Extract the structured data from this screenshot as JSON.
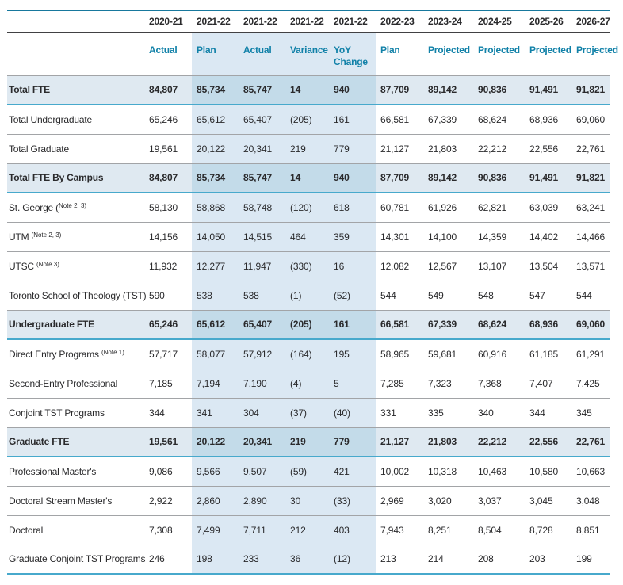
{
  "colors": {
    "accent_teal_header_text": "#1181a8",
    "table_top_rule": "#17789d",
    "highlight_row_bg": "#dfe9f1",
    "band_bg": "#dbe8f3",
    "band_on_highlight_bg": "#c3dbe9",
    "highlight_bottom_rule": "#47a9cc",
    "row_divider": "#a2a4a7",
    "year_divider": "#414143",
    "body_text": "#2a2a2c"
  },
  "table": {
    "columns": [
      {
        "year": "2020-21",
        "sub": "Actual",
        "band": false
      },
      {
        "year": "2021-22",
        "sub": "Plan",
        "band": true
      },
      {
        "year": "2021-22",
        "sub": "Actual",
        "band": true
      },
      {
        "year": "2021-22",
        "sub": "Variance",
        "band": true
      },
      {
        "year": "2021-22",
        "sub": "YoY\nChange",
        "band": true
      },
      {
        "year": "2022-23",
        "sub": "Plan",
        "band": false
      },
      {
        "year": "2023-24",
        "sub": "Projected",
        "band": false
      },
      {
        "year": "2024-25",
        "sub": "Projected",
        "band": false
      },
      {
        "year": "2025-26",
        "sub": "Projected",
        "band": false
      },
      {
        "year": "2026-27",
        "sub": "Projected",
        "band": false
      }
    ],
    "rows": [
      {
        "label": "Total FTE",
        "bold": true,
        "values": [
          "84,807",
          "85,734",
          "85,747",
          "14",
          "940",
          "87,709",
          "89,142",
          "90,836",
          "91,491",
          "91,821"
        ]
      },
      {
        "label": "Total Undergraduate",
        "bold": false,
        "values": [
          "65,246",
          "65,612",
          "65,407",
          "(205)",
          "161",
          "66,581",
          "67,339",
          "68,624",
          "68,936",
          "69,060"
        ]
      },
      {
        "label": "Total Graduate",
        "bold": false,
        "values": [
          "19,561",
          "20,122",
          "20,341",
          "219",
          "779",
          "21,127",
          "21,803",
          "22,212",
          "22,556",
          "22,761"
        ]
      },
      {
        "label": "Total FTE By Campus",
        "bold": true,
        "values": [
          "84,807",
          "85,734",
          "85,747",
          "14",
          "940",
          "87,709",
          "89,142",
          "90,836",
          "91,491",
          "91,821"
        ]
      },
      {
        "label": "St. George (",
        "sup": "Note 2, 3)",
        "bold": false,
        "values": [
          "58,130",
          "58,868",
          "58,748",
          "(120)",
          "618",
          "60,781",
          "61,926",
          "62,821",
          "63,039",
          "63,241"
        ]
      },
      {
        "label": "UTM ",
        "sup": "(Note 2, 3)",
        "bold": false,
        "values": [
          "14,156",
          "14,050",
          "14,515",
          "464",
          "359",
          "14,301",
          "14,100",
          "14,359",
          "14,402",
          "14,466"
        ]
      },
      {
        "label": "UTSC ",
        "sup": "(Note 3)",
        "bold": false,
        "values": [
          "11,932",
          "12,277",
          "11,947",
          "(330)",
          "16",
          "12,082",
          "12,567",
          "13,107",
          "13,504",
          "13,571"
        ]
      },
      {
        "label": "Toronto School of Theology (TST)",
        "bold": false,
        "values": [
          "590",
          "538",
          "538",
          "(1)",
          "(52)",
          "544",
          "549",
          "548",
          "547",
          "544"
        ]
      },
      {
        "label": "Undergraduate FTE",
        "bold": true,
        "values": [
          "65,246",
          "65,612",
          "65,407",
          "(205)",
          "161",
          "66,581",
          "67,339",
          "68,624",
          "68,936",
          "69,060"
        ]
      },
      {
        "label": "Direct Entry Programs ",
        "sup": "(Note 1)",
        "bold": false,
        "values": [
          "57,717",
          "58,077",
          "57,912",
          "(164)",
          "195",
          "58,965",
          "59,681",
          "60,916",
          "61,185",
          "61,291"
        ]
      },
      {
        "label": "Second-Entry Professional",
        "bold": false,
        "values": [
          "7,185",
          "7,194",
          "7,190",
          "(4)",
          "5",
          "7,285",
          "7,323",
          "7,368",
          "7,407",
          "7,425"
        ]
      },
      {
        "label": "Conjoint TST Programs",
        "bold": false,
        "values": [
          "344",
          "341",
          "304",
          "(37)",
          "(40)",
          "331",
          "335",
          "340",
          "344",
          "345"
        ]
      },
      {
        "label": "Graduate FTE",
        "bold": true,
        "values": [
          "19,561",
          "20,122",
          "20,341",
          "219",
          "779",
          "21,127",
          "21,803",
          "22,212",
          "22,556",
          "22,761"
        ]
      },
      {
        "label": "Professional Master's",
        "bold": false,
        "values": [
          "9,086",
          "9,566",
          "9,507",
          "(59)",
          "421",
          "10,002",
          "10,318",
          "10,463",
          "10,580",
          "10,663"
        ]
      },
      {
        "label": "Doctoral Stream Master's",
        "bold": false,
        "values": [
          "2,922",
          "2,860",
          "2,890",
          "30",
          "(33)",
          "2,969",
          "3,020",
          "3,037",
          "3,045",
          "3,048"
        ]
      },
      {
        "label": "Doctoral",
        "bold": false,
        "values": [
          "7,308",
          "7,499",
          "7,711",
          "212",
          "403",
          "7,943",
          "8,251",
          "8,504",
          "8,728",
          "8,851"
        ]
      },
      {
        "label": "Graduate Conjoint TST Programs",
        "bold": false,
        "values": [
          "246",
          "198",
          "233",
          "36",
          "(12)",
          "213",
          "214",
          "208",
          "203",
          "199"
        ]
      }
    ]
  }
}
